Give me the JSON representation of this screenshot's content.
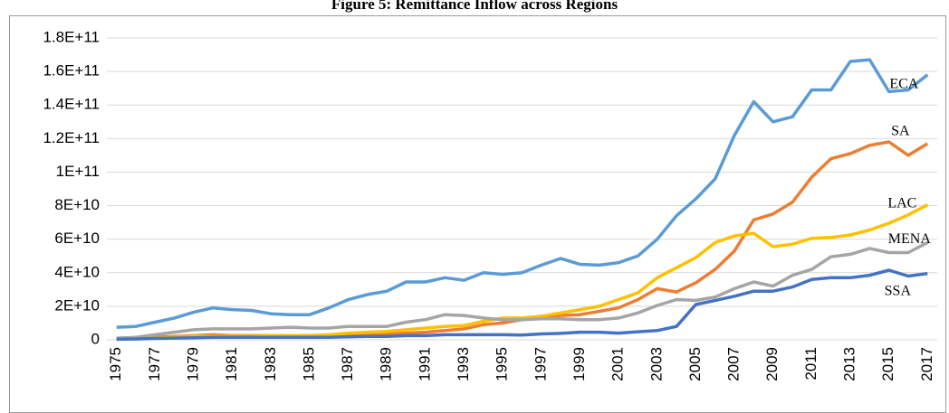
{
  "chart_data": {
    "type": "line",
    "title": "Figure 5: Remittance Inflow across Regions",
    "categories": [
      "1975",
      null,
      "1977",
      null,
      "1979",
      null,
      "1981",
      null,
      "1983",
      null,
      "1985",
      null,
      "1987",
      null,
      "1989",
      null,
      "1991",
      null,
      "1993",
      null,
      "1995",
      null,
      "1997",
      null,
      "1999",
      null,
      "2001",
      null,
      "2003",
      null,
      "2005",
      null,
      "2007",
      null,
      "2009",
      null,
      "2011",
      null,
      "2013",
      null,
      "2015",
      null,
      "2017"
    ],
    "series": [
      {
        "name": "ECA",
        "color": "#5b9bd5",
        "values": [
          7500000000.0,
          8000000000.0,
          10500000000.0,
          13000000000.0,
          16500000000.0,
          19000000000.0,
          18000000000.0,
          17500000000.0,
          15500000000.0,
          15000000000.0,
          15000000000.0,
          19000000000.0,
          24000000000.0,
          27000000000.0,
          29000000000.0,
          34500000000.0,
          34500000000.0,
          37000000000.0,
          35500000000.0,
          40000000000.0,
          39000000000.0,
          40000000000.0,
          44500000000.0,
          48500000000.0,
          45000000000.0,
          44500000000.0,
          46000000000.0,
          50000000000.0,
          60000000000.0,
          74000000000.0,
          84000000000.0,
          96000000000.0,
          122000000000.0,
          142000000000.0,
          130000000000.0,
          133000000000.0,
          149000000000.0,
          149000000000.0,
          166000000000.0,
          167000000000.0,
          148000000000.0,
          149000000000.0,
          158000000000.0
        ]
      },
      {
        "name": "SA",
        "color": "#ed7d31",
        "values": [
          500000000.0,
          1000000000.0,
          1500000000.0,
          2000000000.0,
          2500000000.0,
          3000000000.0,
          2500000000.0,
          2500000000.0,
          2500000000.0,
          2500000000.0,
          2500000000.0,
          2500000000.0,
          3000000000.0,
          3000000000.0,
          3500000000.0,
          4000000000.0,
          4500000000.0,
          5500000000.0,
          6500000000.0,
          9000000000.0,
          10000000000.0,
          12000000000.0,
          14000000000.0,
          14500000000.0,
          15000000000.0,
          17000000000.0,
          19000000000.0,
          24000000000.0,
          30500000000.0,
          28500000000.0,
          34000000000.0,
          42000000000.0,
          53000000000.0,
          71500000000.0,
          75000000000.0,
          82000000000.0,
          97000000000.0,
          108000000000.0,
          111000000000.0,
          116000000000.0,
          118000000000.0,
          110000000000.0,
          117000000000.0
        ]
      },
      {
        "name": "LAC",
        "color": "#ffc000",
        "values": [
          500000000.0,
          800000000.0,
          1000000000.0,
          1500000000.0,
          2000000000.0,
          2000000000.0,
          2000000000.0,
          2000000000.0,
          2500000000.0,
          2500000000.0,
          2500000000.0,
          3000000000.0,
          4000000000.0,
          4500000000.0,
          5000000000.0,
          6000000000.0,
          7000000000.0,
          8000000000.0,
          8500000000.0,
          11000000000.0,
          13000000000.0,
          13000000000.0,
          14000000000.0,
          16000000000.0,
          18000000000.0,
          20000000000.0,
          24000000000.0,
          28000000000.0,
          37000000000.0,
          43000000000.0,
          49000000000.0,
          58000000000.0,
          62000000000.0,
          63500000000.0,
          55500000000.0,
          57000000000.0,
          60500000000.0,
          61000000000.0,
          62500000000.0,
          65500000000.0,
          69500000000.0,
          74500000000.0,
          80500000000.0
        ]
      },
      {
        "name": "MENA",
        "color": "#a5a5a5",
        "values": [
          1000000000.0,
          1500000000.0,
          3000000000.0,
          4500000000.0,
          6000000000.0,
          6500000000.0,
          6500000000.0,
          6500000000.0,
          7000000000.0,
          7500000000.0,
          7000000000.0,
          7000000000.0,
          8000000000.0,
          8000000000.0,
          8000000000.0,
          10500000000.0,
          12000000000.0,
          15000000000.0,
          14500000000.0,
          13000000000.0,
          12000000000.0,
          12000000000.0,
          12500000000.0,
          12500000000.0,
          12000000000.0,
          12000000000.0,
          13000000000.0,
          16000000000.0,
          20500000000.0,
          24000000000.0,
          23500000000.0,
          25500000000.0,
          30500000000.0,
          34500000000.0,
          32000000000.0,
          38500000000.0,
          42000000000.0,
          49500000000.0,
          51000000000.0,
          54500000000.0,
          52000000000.0,
          52000000000.0,
          58000000000.0
        ]
      },
      {
        "name": "SSA",
        "color": "#4472c4",
        "values": [
          300000000.0,
          500000000.0,
          800000000.0,
          1000000000.0,
          1200000000.0,
          1500000000.0,
          1500000000.0,
          1500000000.0,
          1500000000.0,
          1500000000.0,
          1500000000.0,
          1500000000.0,
          1800000000.0,
          2000000000.0,
          2000000000.0,
          2500000000.0,
          2500000000.0,
          3000000000.0,
          3000000000.0,
          3000000000.0,
          3000000000.0,
          2800000000.0,
          3500000000.0,
          3800000000.0,
          4500000000.0,
          4500000000.0,
          4000000000.0,
          4800000000.0,
          5500000000.0,
          8000000000.0,
          21000000000.0,
          23500000000.0,
          26000000000.0,
          29000000000.0,
          29000000000.0,
          31500000000.0,
          36000000000.0,
          37000000000.0,
          37000000000.0,
          38500000000.0,
          41500000000.0,
          38000000000.0,
          39500000000.0
        ]
      }
    ],
    "ylim": [
      0,
      180000000000
    ],
    "yticks": [
      0,
      {
        "value": 20000000000,
        "label": "2E+10"
      },
      {
        "value": 40000000000,
        "label": "4E+10"
      },
      {
        "value": 60000000000,
        "label": "6E+10"
      },
      {
        "value": 80000000000,
        "label": "8E+10"
      },
      {
        "value": 100000000000,
        "label": "1E+11"
      },
      {
        "value": 120000000000,
        "label": "1.2E+11"
      },
      {
        "value": 140000000000,
        "label": "1.4E+11"
      },
      {
        "value": 160000000000,
        "label": "1.6E+11"
      },
      {
        "value": 180000000000,
        "label": "1.8E+11"
      }
    ],
    "grid": true
  }
}
